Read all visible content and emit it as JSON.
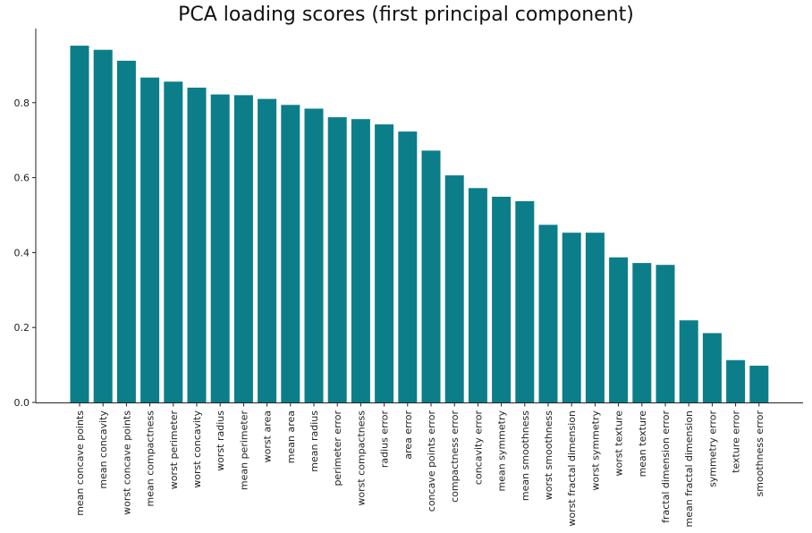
{
  "chart_data": {
    "type": "bar",
    "title": "PCA loading scores (first principal component)",
    "xlabel": "",
    "ylabel": "",
    "ylim": [
      0,
      1.0
    ],
    "yticks": [
      "0.0",
      "0.2",
      "0.4",
      "0.6",
      "0.8"
    ],
    "grid": false,
    "bar_color": "#0b7e8a",
    "categories": [
      "mean concave points",
      "mean concavity",
      "worst concave points",
      "mean compactness",
      "worst perimeter",
      "worst concavity",
      "worst radius",
      "mean perimeter",
      "worst area",
      "mean area",
      "mean radius",
      "perimeter error",
      "worst compactness",
      "radius error",
      "area error",
      "concave points error",
      "compactness error",
      "concavity error",
      "mean symmetry",
      "mean smoothness",
      "worst smoothness",
      "worst fractal dimension",
      "worst symmetry",
      "worst texture",
      "mean texture",
      "fractal dimension error",
      "mean fractal dimension",
      "symmetry error",
      "texture error",
      "smoothness error"
    ],
    "values": [
      0.952,
      0.941,
      0.912,
      0.867,
      0.856,
      0.84,
      0.822,
      0.82,
      0.81,
      0.794,
      0.784,
      0.761,
      0.756,
      0.742,
      0.723,
      0.672,
      0.606,
      0.572,
      0.549,
      0.537,
      0.474,
      0.453,
      0.453,
      0.387,
      0.372,
      0.367,
      0.219,
      0.185,
      0.113,
      0.098
    ]
  }
}
